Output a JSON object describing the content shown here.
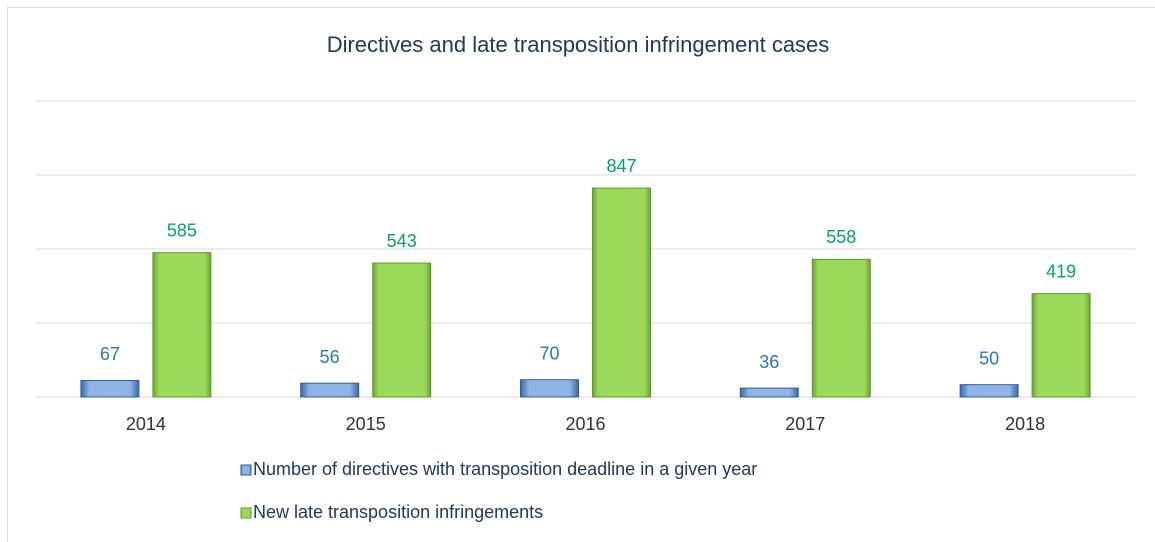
{
  "chart_data": {
    "type": "bar",
    "title": "Directives and late transposition infringement cases",
    "categories": [
      "2014",
      "2015",
      "2016",
      "2017",
      "2018"
    ],
    "series": [
      {
        "name": "Number of directives with transposition deadline in a given year",
        "color": "#4f81bd",
        "label_color": "#2e75b6",
        "values": [
          67,
          56,
          70,
          36,
          50
        ]
      },
      {
        "name": "New late transposition infringements",
        "color": "#92d050",
        "label_color": "#00a36c",
        "values": [
          585,
          543,
          847,
          558,
          419
        ]
      }
    ],
    "ylim": [
      0,
      1200
    ],
    "yticks": [
      0,
      300,
      600,
      900,
      1200
    ],
    "grid": true
  }
}
